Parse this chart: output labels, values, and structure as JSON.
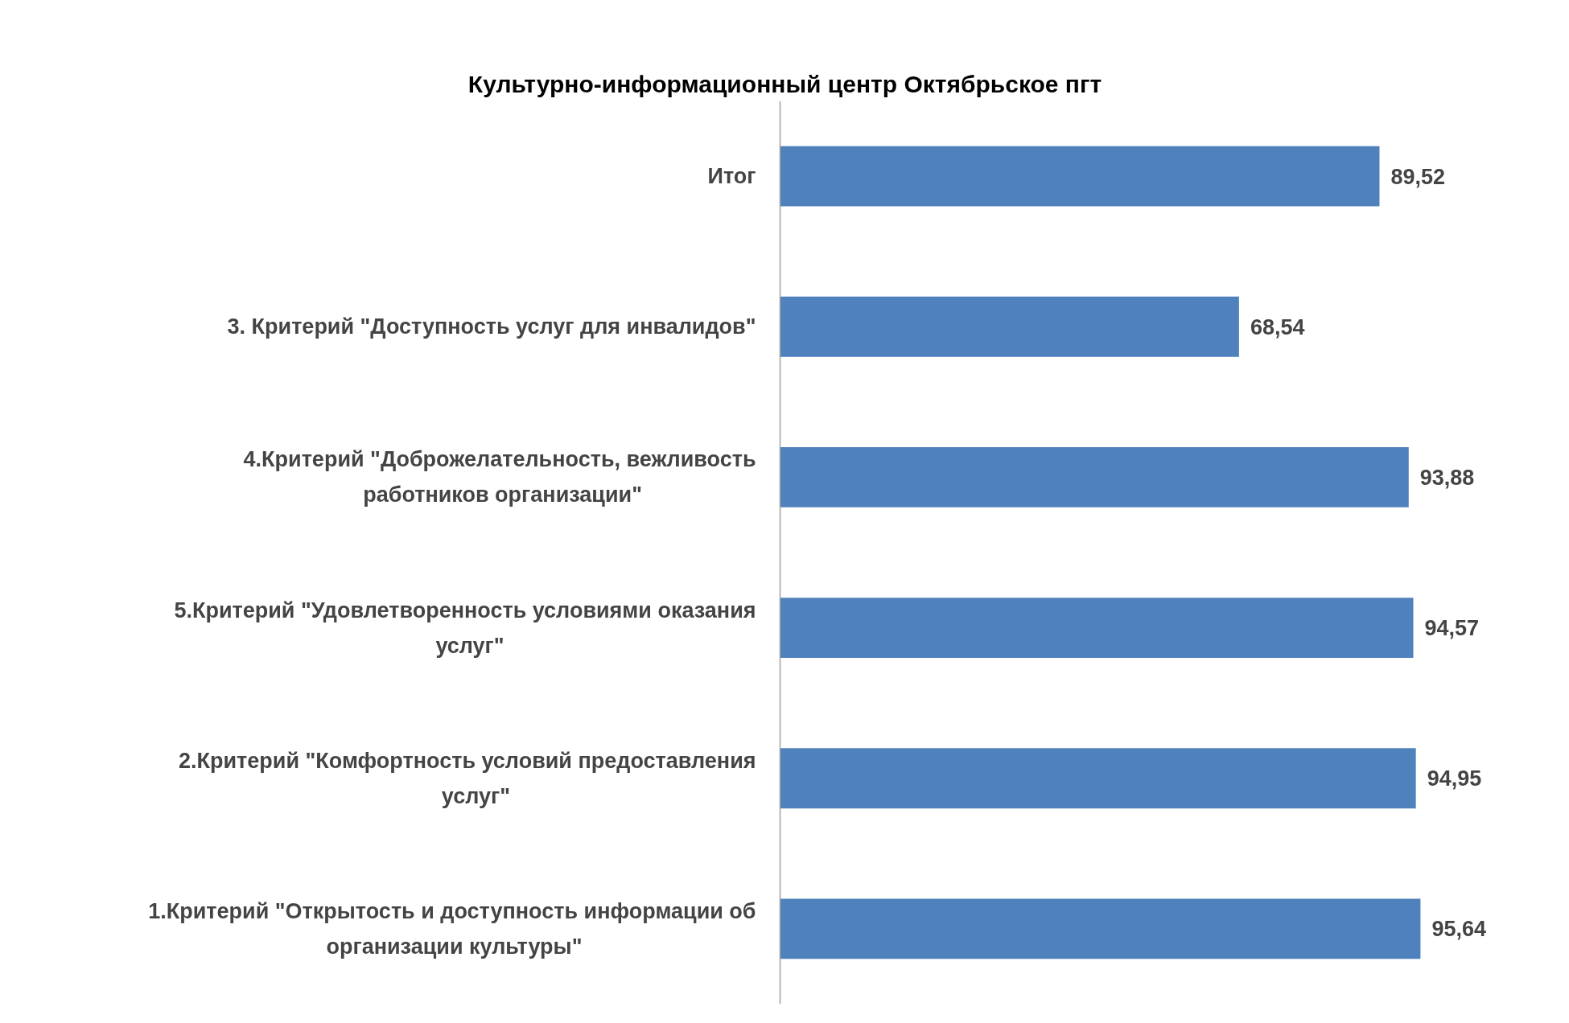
{
  "chart_data": {
    "type": "bar",
    "orientation": "horizontal",
    "title": "Культурно-информационный центр Октябрьское пгт",
    "categories": [
      "Итог",
      "3. Критерий \"Доступность услуг для инвалидов\"",
      "4.Критерий \"Доброжелательность, вежливость работников организации\"",
      "5.Критерий \"Удовлетворенность условиями оказания услуг\"",
      "2.Критерий \"Комфортность условий предоставления услуг\"",
      "1.Критерий \"Открытость и доступность информации об организации культуры\""
    ],
    "values": [
      89.52,
      68.54,
      93.88,
      94.57,
      94.95,
      95.64
    ],
    "value_labels": [
      "89,52",
      "68,54",
      "93,88",
      "94,57",
      "94,95",
      "95,64"
    ],
    "color": "#4f81bd",
    "grid": false
  }
}
